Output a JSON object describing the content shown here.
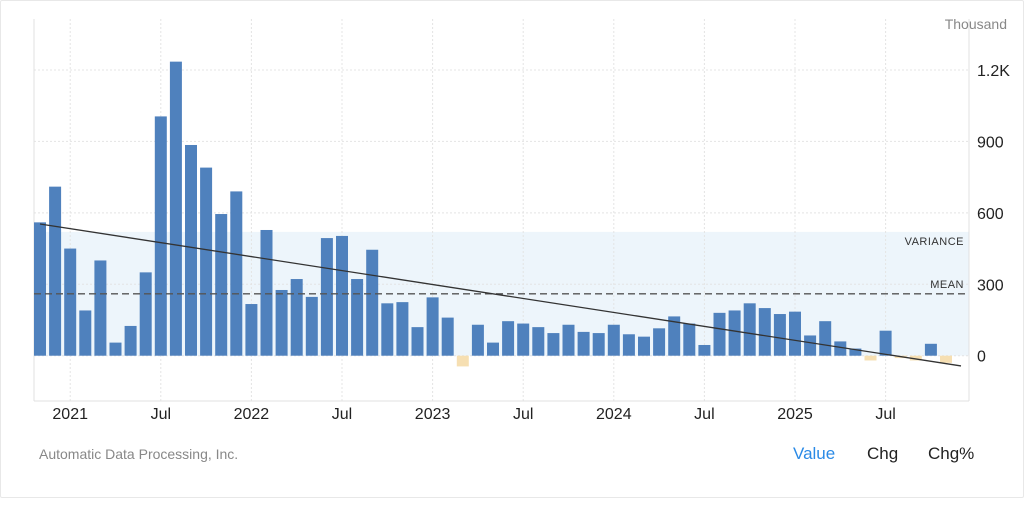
{
  "chart_data": {
    "type": "bar",
    "title": "",
    "unit": "Thousand",
    "categories_start": "Nov 2020",
    "categories_end": "Nov 2025",
    "values": [
      560,
      710,
      450,
      190,
      400,
      55,
      125,
      350,
      1005,
      1235,
      885,
      790,
      595,
      690,
      217,
      528,
      276,
      322,
      247,
      494,
      503,
      322,
      445,
      220,
      225,
      120,
      245,
      160,
      -45,
      130,
      55,
      145,
      135,
      120,
      95,
      130,
      100,
      95,
      130,
      90,
      80,
      115,
      165,
      135,
      45,
      180,
      190,
      220,
      200,
      175,
      185,
      85,
      145,
      60,
      30,
      -20,
      105,
      -10,
      -20,
      50,
      -30
    ],
    "x_ticks": [
      {
        "index": 2,
        "label": "2021"
      },
      {
        "index": 8,
        "label": "Jul"
      },
      {
        "index": 14,
        "label": "2022"
      },
      {
        "index": 20,
        "label": "Jul"
      },
      {
        "index": 26,
        "label": "2023"
      },
      {
        "index": 32,
        "label": "Jul"
      },
      {
        "index": 38,
        "label": "2024"
      },
      {
        "index": 44,
        "label": "Jul"
      },
      {
        "index": 50,
        "label": "2025"
      },
      {
        "index": 56,
        "label": "Jul"
      }
    ],
    "y_ticks": [
      {
        "value": 0,
        "label": "0"
      },
      {
        "value": 300,
        "label": "300"
      },
      {
        "value": 600,
        "label": "600"
      },
      {
        "value": 900,
        "label": "900"
      },
      {
        "value": 1200,
        "label": "1.2K"
      }
    ],
    "ylim": [
      -190,
      1320
    ],
    "mean": 260,
    "mean_label": "MEAN",
    "variance_band": [
      0,
      520
    ],
    "variance_label": "VARIANCE",
    "trend": {
      "start": 553,
      "end": -43
    },
    "grid": true,
    "colors": {
      "positive": "#4f81bd",
      "negative": "#f6dfb2",
      "band": "#edf5fb",
      "trend": "#333333"
    }
  },
  "footer": {
    "source": "Automatic Data Processing, Inc.",
    "tabs": [
      {
        "label": "Value",
        "active": true
      },
      {
        "label": "Chg",
        "active": false
      },
      {
        "label": "Chg%",
        "active": false
      }
    ]
  }
}
